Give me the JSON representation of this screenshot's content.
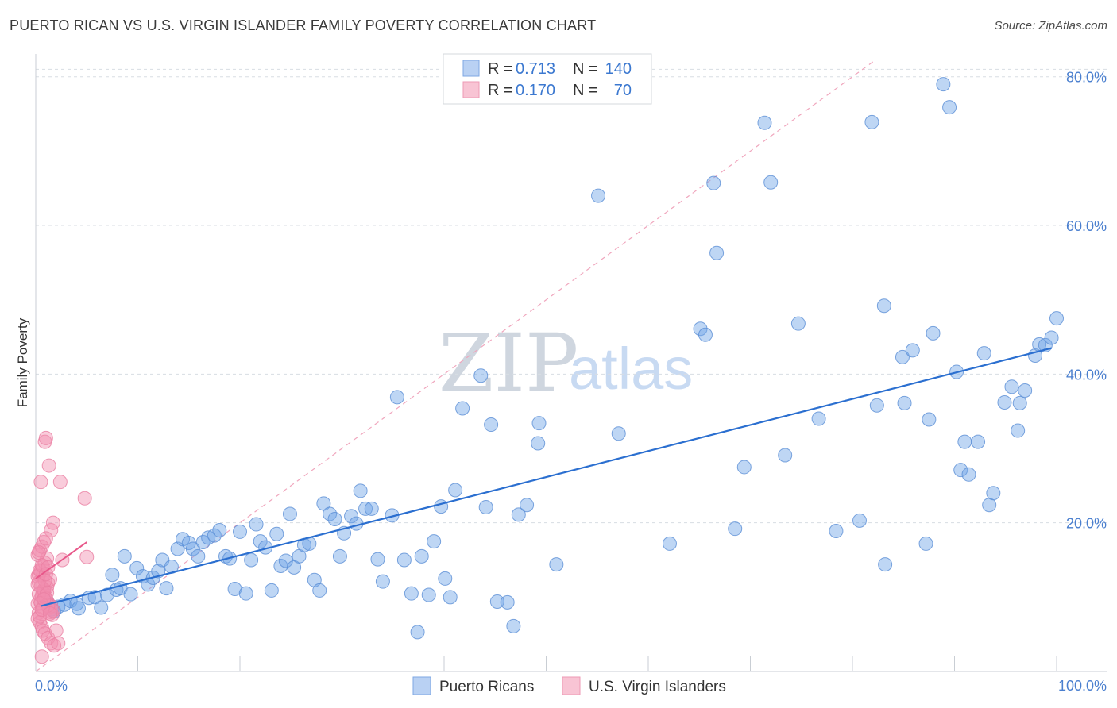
{
  "title": "PUERTO RICAN VS U.S. VIRGIN ISLANDER FAMILY POVERTY CORRELATION CHART",
  "source": "Source: ZipAtlas.com",
  "watermark": {
    "part1": "ZIP",
    "part2": "atlas"
  },
  "colors": {
    "blue": "#6fa3e6",
    "blue_line": "#2b6fd0",
    "pink": "#f28fb0",
    "pink_line": "#e8588a",
    "grid": "#d8dde3"
  },
  "legend": {
    "rows": [
      {
        "r_label": "R =",
        "r_value": "0.713",
        "n_label": "N =",
        "n_value": "140"
      },
      {
        "r_label": "R =",
        "r_value": "0.170",
        "n_label": "N =",
        "n_value": "70"
      }
    ]
  },
  "bottom_legend": [
    "Puerto Ricans",
    "U.S. Virgin Islanders"
  ],
  "chart_data": {
    "type": "scatter",
    "title": "PUERTO RICAN VS U.S. VIRGIN ISLANDER FAMILY POVERTY CORRELATION CHART",
    "xlabel": "",
    "ylabel": "Family Poverty",
    "xlim": [
      0,
      100
    ],
    "ylim": [
      0,
      82
    ],
    "x_tick_labels": [
      "0.0%",
      "100.0%"
    ],
    "y_ticks": [
      20,
      40,
      60,
      80
    ],
    "y_tick_labels": [
      "20.0%",
      "40.0%",
      "60.0%",
      "80.0%"
    ],
    "series": [
      {
        "name": "Puerto Ricans",
        "r": 0.713,
        "n": 140,
        "trend": {
          "x": [
            0.5,
            99.5
          ],
          "y": [
            8.8,
            43.5
          ]
        },
        "points": [
          [
            1.2,
            9.2
          ],
          [
            1.6,
            8.4
          ],
          [
            1.8,
            8.1
          ],
          [
            2.2,
            8.7
          ],
          [
            2.8,
            9.0
          ],
          [
            3.4,
            9.5
          ],
          [
            4.0,
            9.1
          ],
          [
            4.2,
            8.5
          ],
          [
            5.2,
            9.9
          ],
          [
            5.8,
            10.0
          ],
          [
            6.4,
            8.6
          ],
          [
            7.0,
            10.3
          ],
          [
            7.5,
            13.0
          ],
          [
            7.9,
            11.0
          ],
          [
            8.3,
            11.2
          ],
          [
            8.7,
            15.5
          ],
          [
            9.3,
            10.4
          ],
          [
            9.9,
            13.9
          ],
          [
            10.5,
            12.8
          ],
          [
            11.0,
            11.7
          ],
          [
            11.5,
            12.6
          ],
          [
            12.0,
            13.5
          ],
          [
            12.4,
            15.0
          ],
          [
            12.8,
            11.2
          ],
          [
            13.3,
            14.1
          ],
          [
            13.9,
            16.5
          ],
          [
            14.4,
            17.8
          ],
          [
            15.0,
            17.3
          ],
          [
            15.4,
            16.5
          ],
          [
            15.9,
            15.5
          ],
          [
            16.4,
            17.4
          ],
          [
            16.9,
            18.0
          ],
          [
            17.5,
            18.3
          ],
          [
            18.0,
            19.0
          ],
          [
            18.6,
            15.5
          ],
          [
            19.0,
            15.2
          ],
          [
            19.5,
            11.1
          ],
          [
            20.0,
            18.8
          ],
          [
            20.6,
            10.5
          ],
          [
            21.1,
            15.0
          ],
          [
            21.6,
            19.8
          ],
          [
            22.0,
            17.5
          ],
          [
            22.5,
            16.7
          ],
          [
            23.1,
            10.9
          ],
          [
            23.6,
            18.5
          ],
          [
            24.0,
            14.2
          ],
          [
            24.5,
            14.9
          ],
          [
            24.9,
            21.2
          ],
          [
            25.3,
            14.0
          ],
          [
            25.8,
            15.5
          ],
          [
            26.3,
            17.0
          ],
          [
            26.8,
            17.2
          ],
          [
            27.3,
            12.3
          ],
          [
            27.8,
            10.9
          ],
          [
            28.2,
            22.6
          ],
          [
            28.8,
            21.2
          ],
          [
            29.3,
            20.5
          ],
          [
            29.8,
            15.5
          ],
          [
            30.2,
            18.6
          ],
          [
            30.9,
            20.9
          ],
          [
            31.4,
            19.9
          ],
          [
            31.8,
            24.3
          ],
          [
            32.3,
            21.9
          ],
          [
            32.9,
            21.9
          ],
          [
            33.5,
            15.1
          ],
          [
            34.0,
            12.1
          ],
          [
            34.9,
            21.0
          ],
          [
            35.4,
            36.9
          ],
          [
            36.1,
            15.0
          ],
          [
            36.8,
            10.5
          ],
          [
            37.4,
            5.3
          ],
          [
            37.8,
            15.5
          ],
          [
            38.5,
            10.3
          ],
          [
            39.0,
            17.5
          ],
          [
            39.7,
            22.2
          ],
          [
            40.1,
            12.5
          ],
          [
            40.6,
            10.0
          ],
          [
            41.1,
            24.4
          ],
          [
            41.8,
            35.4
          ],
          [
            43.6,
            39.8
          ],
          [
            44.1,
            22.1
          ],
          [
            44.6,
            33.2
          ],
          [
            45.2,
            9.4
          ],
          [
            46.2,
            9.3
          ],
          [
            46.8,
            6.1
          ],
          [
            47.3,
            21.1
          ],
          [
            48.1,
            22.4
          ],
          [
            49.2,
            30.7
          ],
          [
            49.3,
            33.4
          ],
          [
            51.0,
            14.4
          ],
          [
            55.1,
            64.0
          ],
          [
            57.1,
            32.0
          ],
          [
            62.1,
            17.2
          ],
          [
            65.1,
            46.1
          ],
          [
            65.6,
            45.3
          ],
          [
            66.4,
            65.7
          ],
          [
            66.7,
            56.3
          ],
          [
            68.5,
            19.2
          ],
          [
            69.4,
            27.5
          ],
          [
            71.4,
            73.8
          ],
          [
            72.0,
            65.8
          ],
          [
            73.4,
            29.1
          ],
          [
            74.7,
            46.8
          ],
          [
            76.7,
            34.0
          ],
          [
            78.4,
            18.9
          ],
          [
            80.7,
            20.3
          ],
          [
            81.9,
            73.9
          ],
          [
            82.4,
            35.8
          ],
          [
            83.1,
            49.2
          ],
          [
            83.2,
            14.4
          ],
          [
            84.9,
            42.3
          ],
          [
            85.1,
            36.1
          ],
          [
            85.9,
            43.2
          ],
          [
            87.2,
            17.2
          ],
          [
            87.5,
            33.9
          ],
          [
            87.9,
            45.5
          ],
          [
            88.9,
            79.0
          ],
          [
            89.5,
            75.9
          ],
          [
            90.2,
            40.3
          ],
          [
            90.6,
            27.1
          ],
          [
            91.0,
            30.9
          ],
          [
            91.4,
            26.5
          ],
          [
            92.3,
            30.9
          ],
          [
            92.9,
            42.8
          ],
          [
            93.4,
            22.4
          ],
          [
            93.8,
            24.0
          ],
          [
            94.9,
            36.2
          ],
          [
            95.6,
            38.3
          ],
          [
            96.2,
            32.4
          ],
          [
            96.4,
            36.1
          ],
          [
            96.9,
            37.8
          ],
          [
            97.9,
            42.5
          ],
          [
            98.3,
            44.0
          ],
          [
            98.9,
            43.9
          ],
          [
            99.5,
            44.9
          ],
          [
            100.0,
            47.5
          ]
        ]
      },
      {
        "name": "U.S. Virgin Islanders",
        "r": 0.17,
        "n": 70,
        "trend": {
          "x": [
            0.0,
            5.0
          ],
          "y": [
            12.5,
            17.4
          ]
        },
        "points": [
          [
            0.3,
            7.9
          ],
          [
            0.5,
            25.5
          ],
          [
            0.7,
            12.9
          ],
          [
            0.9,
            30.9
          ],
          [
            1.0,
            31.4
          ],
          [
            1.3,
            27.7
          ],
          [
            1.5,
            19.0
          ],
          [
            1.7,
            20.0
          ],
          [
            2.4,
            25.5
          ],
          [
            2.6,
            15.0
          ],
          [
            4.8,
            23.3
          ],
          [
            5.0,
            15.4
          ],
          [
            0.2,
            9.1
          ],
          [
            0.4,
            9.6
          ],
          [
            0.6,
            10.2
          ],
          [
            0.8,
            10.8
          ],
          [
            1.1,
            11.3
          ],
          [
            1.2,
            11.9
          ],
          [
            1.4,
            12.4
          ],
          [
            0.3,
            13.0
          ],
          [
            0.5,
            13.5
          ],
          [
            0.7,
            14.1
          ],
          [
            0.9,
            14.6
          ],
          [
            1.1,
            15.2
          ],
          [
            0.2,
            15.7
          ],
          [
            0.4,
            16.3
          ],
          [
            0.6,
            16.8
          ],
          [
            0.8,
            17.4
          ],
          [
            1.0,
            17.9
          ],
          [
            1.3,
            8.5
          ],
          [
            1.5,
            8.0
          ],
          [
            1.6,
            7.6
          ],
          [
            0.2,
            7.1
          ],
          [
            0.4,
            6.6
          ],
          [
            0.6,
            6.0
          ],
          [
            0.7,
            5.5
          ],
          [
            0.9,
            5.1
          ],
          [
            1.2,
            4.5
          ],
          [
            1.5,
            3.8
          ],
          [
            1.8,
            3.5
          ],
          [
            2.2,
            3.8
          ],
          [
            0.6,
            2.0
          ],
          [
            0.3,
            12.0
          ],
          [
            0.5,
            11.4
          ],
          [
            0.7,
            10.7
          ],
          [
            0.9,
            10.0
          ],
          [
            1.1,
            9.5
          ],
          [
            1.3,
            9.0
          ],
          [
            1.5,
            8.8
          ],
          [
            1.7,
            8.2
          ],
          [
            0.2,
            12.8
          ],
          [
            0.4,
            13.6
          ],
          [
            0.6,
            14.3
          ],
          [
            0.8,
            11.0
          ],
          [
            1.0,
            9.8
          ],
          [
            1.2,
            8.9
          ],
          [
            0.3,
            10.4
          ],
          [
            0.5,
            9.2
          ],
          [
            0.7,
            8.6
          ],
          [
            0.9,
            12.2
          ],
          [
            1.1,
            10.6
          ],
          [
            0.2,
            11.7
          ],
          [
            0.4,
            7.4
          ],
          [
            0.6,
            8.3
          ],
          [
            0.8,
            9.7
          ],
          [
            1.0,
            13.1
          ],
          [
            1.2,
            14.0
          ],
          [
            1.4,
            7.8
          ],
          [
            2.0,
            5.5
          ],
          [
            0.3,
            16.0
          ]
        ]
      }
    ]
  }
}
